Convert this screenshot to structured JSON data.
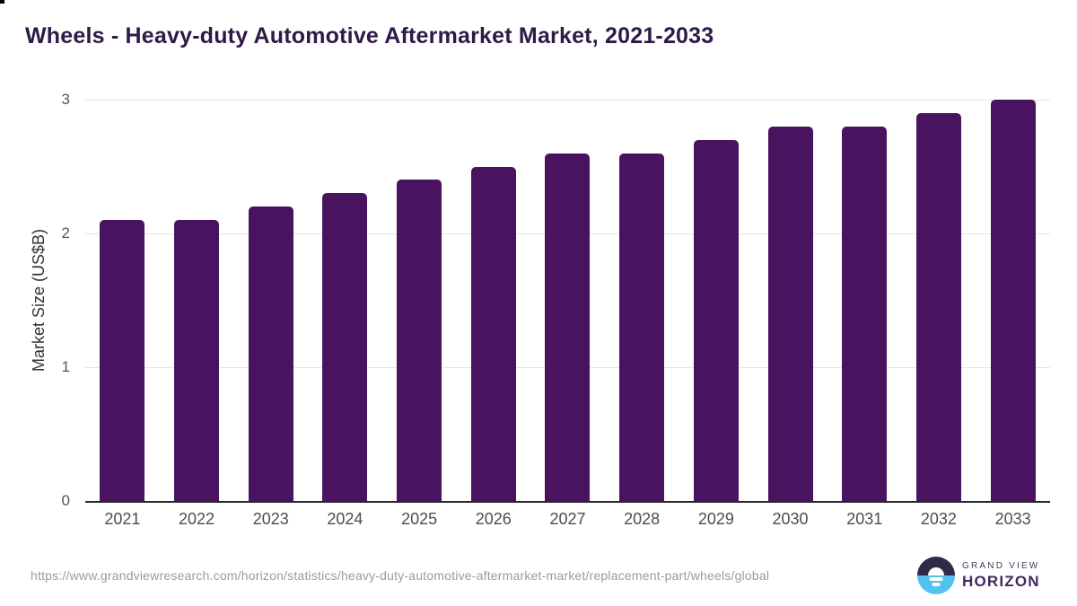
{
  "title": "Wheels - Heavy-duty Automotive Aftermarket Market, 2021-2033",
  "chart_data": {
    "type": "bar",
    "categories": [
      "2021",
      "2022",
      "2023",
      "2024",
      "2025",
      "2026",
      "2027",
      "2028",
      "2029",
      "2030",
      "2031",
      "2032",
      "2033"
    ],
    "values": [
      2.1,
      2.1,
      2.2,
      2.3,
      2.4,
      2.5,
      2.6,
      2.6,
      2.7,
      2.8,
      2.8,
      2.9,
      3.0
    ],
    "title": "Wheels - Heavy-duty Automotive Aftermarket Market, 2021-2033",
    "xlabel": "",
    "ylabel": "Market Size (US$B)",
    "ylim": [
      0,
      3
    ],
    "yticks": [
      0,
      1,
      2,
      3
    ],
    "grid": true,
    "legend": false,
    "bar_color": "#4a135f"
  },
  "colors": {
    "title": "#2e1a47",
    "bar": "#4a135f",
    "gridline": "#e5e5e5",
    "axis_line": "#262626",
    "tick_label": "#555555",
    "url_text": "#9b9b9b",
    "logo_top_half": "#322848",
    "logo_bottom_half": "#55c1ef"
  },
  "footer": {
    "source_url": "https://www.grandviewresearch.com/horizon/statistics/heavy-duty-automotive-aftermarket-market/replacement-part/wheels/global",
    "logo": {
      "line1": "GRAND VIEW",
      "line2": "HORIZON"
    }
  }
}
